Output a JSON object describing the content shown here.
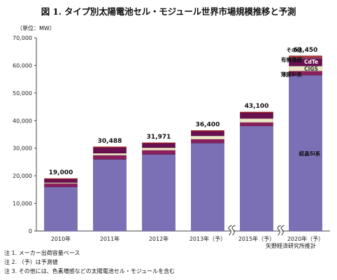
{
  "title": "図 1. タイプ別太陽電池セル・モジュール世界市場規模推移と予測",
  "unit_label": "（単位：MW）",
  "source": "矢野経済研究所推計",
  "notes": [
    "注 1. メーカー出荷容量ベース",
    "注 2. （予）は予測値",
    "注 3. その他には、色素増感などの太陽電池セル・モジュールを含む"
  ],
  "chart_data": {
    "type": "bar",
    "stacked": true,
    "categories": [
      "2010年",
      "2011年",
      "2012年",
      "2013年（予）",
      "2015年（予）",
      "2020年（予）"
    ],
    "totals": [
      19000,
      30488,
      31971,
      36400,
      43100,
      63450
    ],
    "total_labels": [
      "19,000",
      "30,488",
      "31,971",
      "36,400",
      "43,100",
      "63,450"
    ],
    "ylim": [
      0,
      70000
    ],
    "yticks": [
      0,
      10000,
      20000,
      30000,
      40000,
      50000,
      60000,
      70000
    ],
    "ytick_labels": [
      "0",
      "10,000",
      "20,000",
      "30,000",
      "40,000",
      "50,000",
      "60,000",
      "70,000"
    ],
    "axis_break_after": [
      "2013年（予）",
      "2015年（予）"
    ],
    "series": [
      {
        "name": "結晶Si系",
        "color": "#7b6fb5",
        "values": [
          16000,
          26000,
          27800,
          31900,
          38100,
          56500
        ]
      },
      {
        "name": "薄膜Si系",
        "color": "#8a1f5e",
        "values": [
          1300,
          1500,
          1500,
          1400,
          1300,
          1500
        ]
      },
      {
        "name": "CIGS",
        "color": "#ece8c8",
        "values": [
          300,
          700,
          900,
          1200,
          1400,
          1800
        ]
      },
      {
        "name": "CdTe",
        "color": "#6a1050",
        "values": [
          1300,
          2100,
          1600,
          1700,
          2100,
          2600
        ]
      },
      {
        "name": "有機薄膜",
        "color": "#8a4a78",
        "values": [
          0,
          0,
          0,
          0,
          0,
          550
        ]
      },
      {
        "name": "その他",
        "color": "#b83a3a",
        "values": [
          100,
          188,
          171,
          200,
          200,
          500
        ]
      }
    ],
    "annotations": [
      "その他",
      "有機薄膜",
      "CdTe",
      "CIGS",
      "薄膜Si系",
      "結晶Si系"
    ],
    "grid": false
  }
}
